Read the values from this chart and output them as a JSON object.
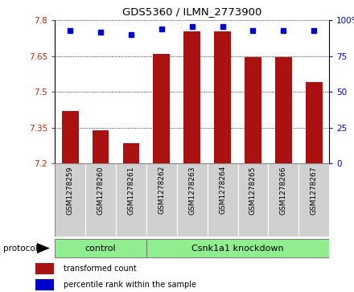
{
  "title": "GDS5360 / ILMN_2773900",
  "samples": [
    "GSM1278259",
    "GSM1278260",
    "GSM1278261",
    "GSM1278262",
    "GSM1278263",
    "GSM1278264",
    "GSM1278265",
    "GSM1278266",
    "GSM1278267"
  ],
  "transformed_count": [
    7.42,
    7.34,
    7.285,
    7.66,
    7.755,
    7.755,
    7.645,
    7.645,
    7.54
  ],
  "percentile_rank": [
    93,
    92,
    90,
    94,
    96,
    96,
    93,
    93,
    93
  ],
  "ylim": [
    7.2,
    7.8
  ],
  "yticks_left": [
    7.2,
    7.35,
    7.5,
    7.65,
    7.8
  ],
  "yticks_right": [
    0,
    25,
    50,
    75,
    100
  ],
  "control_count": 3,
  "knockdown_count": 6,
  "group_labels": [
    "control",
    "Csnk1a1 knockdown"
  ],
  "group_color": "#90ee90",
  "bar_color": "#aa1111",
  "dot_color": "#0000cc",
  "bar_width": 0.55,
  "bg_color": "#ffffff",
  "cell_color": "#d0d0d0",
  "tick_color_left": "#cc2200",
  "tick_color_right": "#0000cc",
  "protocol_label": "protocol",
  "legend_items": [
    "transformed count",
    "percentile rank within the sample"
  ],
  "legend_colors": [
    "#aa1111",
    "#0000cc"
  ]
}
